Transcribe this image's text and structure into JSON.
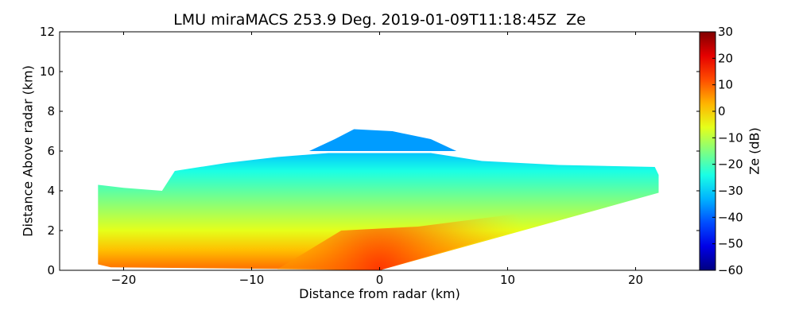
{
  "chart_data": {
    "type": "heatmap",
    "title": "LMU miraMACS 253.9 Deg. 2019-01-09T11:18:45Z  Ze",
    "xlabel": "Distance from radar (km)",
    "ylabel": "Distance Above radar  (km)",
    "colorbar_label": "Ze (dB)",
    "xlim": [
      -25,
      25
    ],
    "ylim": [
      0,
      12
    ],
    "xticks": [
      -20,
      -10,
      0,
      10,
      20
    ],
    "xtick_labels": [
      "−20",
      "−10",
      "0",
      "10",
      "20"
    ],
    "yticks": [
      0,
      2,
      4,
      6,
      8,
      10,
      12
    ],
    "ytick_labels": [
      "0",
      "2",
      "4",
      "6",
      "8",
      "10",
      "12"
    ],
    "colorbar_range": [
      -60,
      30
    ],
    "colorbar_ticks": [
      -60,
      -50,
      -40,
      -30,
      -20,
      -10,
      0,
      10,
      20,
      30
    ],
    "colorbar_tick_labels": [
      "−60",
      "−50",
      "−40",
      "−30",
      "−20",
      "−10",
      "0",
      "10",
      "20",
      "30"
    ],
    "colormap": "jet",
    "echo_region": {
      "left_edge_x": -22,
      "right_edge_x": 21.8,
      "left_bottom_y": 0.3,
      "left_top_y": 4.3,
      "right_bottom_y": 3.9,
      "right_top_y": 4.8,
      "main_top_y": 5.9,
      "cap_top_y": 7.1,
      "cap_x_range": [
        -5.5,
        6
      ]
    },
    "reflectivity_profile": [
      {
        "height_km": 0.2,
        "ze_db": 8
      },
      {
        "height_km": 1.0,
        "ze_db": 2
      },
      {
        "height_km": 2.0,
        "ze_db": -6
      },
      {
        "height_km": 3.0,
        "ze_db": -12
      },
      {
        "height_km": 4.0,
        "ze_db": -18
      },
      {
        "height_km": 5.0,
        "ze_db": -24
      },
      {
        "height_km": 6.0,
        "ze_db": -32
      },
      {
        "height_km": 7.0,
        "ze_db": -36
      }
    ]
  }
}
